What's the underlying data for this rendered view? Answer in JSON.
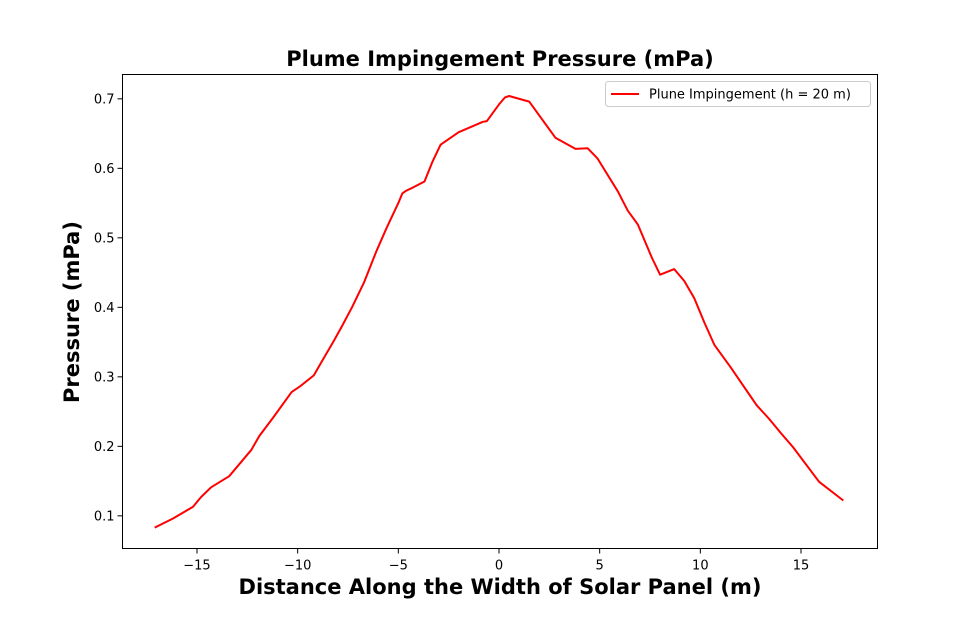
{
  "chart_data": {
    "type": "line",
    "title": "Plume Impingement Pressure (mPa)",
    "xlabel": "Distance Along the Width of Solar Panel (m)",
    "ylabel": "Pressure (mPa)",
    "xlim": [
      -18.7,
      18.8
    ],
    "ylim": [
      0.053,
      0.735
    ],
    "xticks": [
      -15,
      -10,
      -5,
      0,
      5,
      10,
      15
    ],
    "xtick_labels": [
      "−15",
      "−10",
      "−5",
      "0",
      "5",
      "10",
      "15"
    ],
    "yticks": [
      0.1,
      0.2,
      0.3,
      0.4,
      0.5,
      0.6,
      0.7
    ],
    "ytick_labels": [
      "0.1",
      "0.2",
      "0.3",
      "0.4",
      "0.5",
      "0.6",
      "0.7"
    ],
    "grid": false,
    "legend_position": "top-right",
    "series": [
      {
        "name": "Plune Impingement (h = 20 m)",
        "color": "#ff0000",
        "x": [
          -17.1,
          -16.2,
          -15.2,
          -14.8,
          -14.3,
          -13.4,
          -12.3,
          -11.9,
          -11.2,
          -10.3,
          -9.9,
          -9.2,
          -8.8,
          -8.2,
          -7.8,
          -7.3,
          -6.7,
          -6.1,
          -5.6,
          -5.0,
          -4.8,
          -4.6,
          -4.3,
          -3.7,
          -3.3,
          -2.9,
          -2.0,
          -0.8,
          -0.6,
          0.0,
          0.3,
          0.5,
          1.5,
          2.8,
          3.8,
          4.4,
          4.9,
          5.9,
          6.4,
          6.9,
          7.6,
          8.0,
          8.7,
          9.2,
          9.7,
          10.2,
          10.7,
          11.5,
          12.4,
          12.8,
          13.4,
          14.0,
          14.6,
          15.9,
          17.1
        ],
        "y": [
          0.083,
          0.096,
          0.113,
          0.127,
          0.141,
          0.157,
          0.195,
          0.215,
          0.242,
          0.278,
          0.286,
          0.302,
          0.322,
          0.352,
          0.373,
          0.4,
          0.436,
          0.48,
          0.513,
          0.55,
          0.564,
          0.568,
          0.572,
          0.581,
          0.61,
          0.634,
          0.652,
          0.667,
          0.668,
          0.692,
          0.702,
          0.704,
          0.696,
          0.644,
          0.628,
          0.629,
          0.614,
          0.567,
          0.539,
          0.519,
          0.471,
          0.447,
          0.455,
          0.438,
          0.413,
          0.378,
          0.346,
          0.314,
          0.276,
          0.259,
          0.24,
          0.219,
          0.199,
          0.149,
          0.122
        ]
      }
    ]
  }
}
